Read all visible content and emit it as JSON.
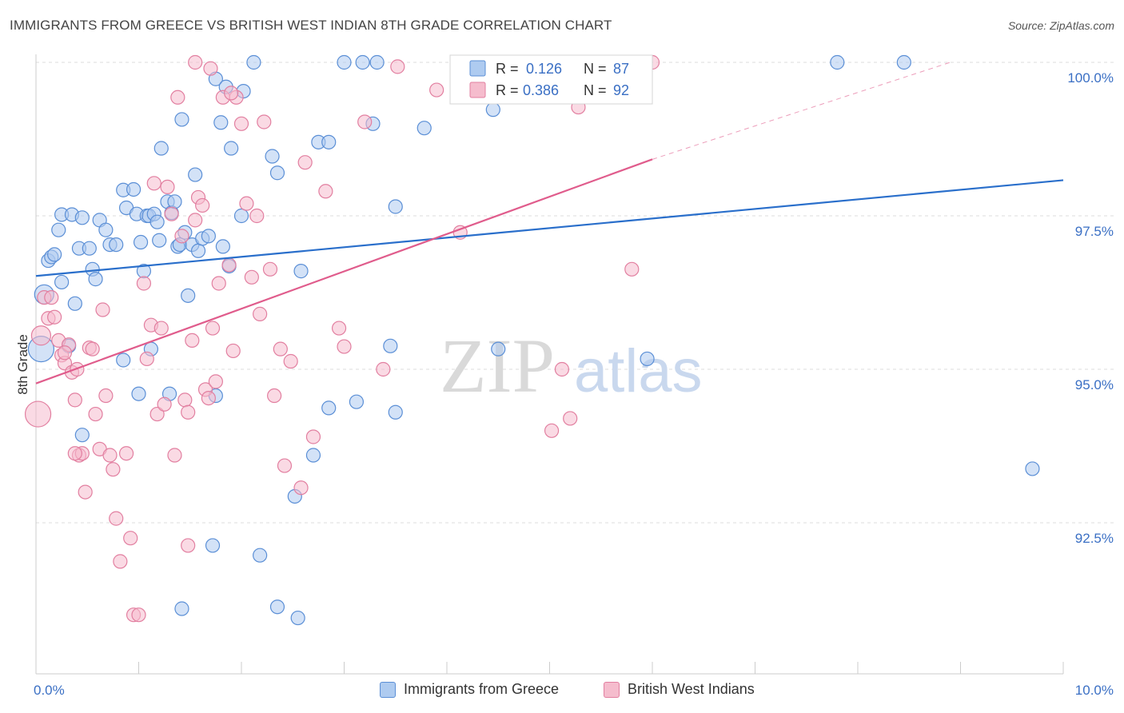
{
  "title": "IMMIGRANTS FROM GREECE VS BRITISH WEST INDIAN 8TH GRADE CORRELATION CHART",
  "source": "Source: ZipAtlas.com",
  "watermark": {
    "zip": "ZIP",
    "atlas": "atlas"
  },
  "legend_top": [
    {
      "r_label": "R =",
      "r_value": "0.126",
      "n_label": "N =",
      "n_value": "87"
    },
    {
      "r_label": "R =",
      "r_value": "0.386",
      "n_label": "N =",
      "n_value": "92"
    }
  ],
  "legend_bottom": [
    "Immigrants from Greece",
    "British West Indians"
  ],
  "colors": {
    "blue_fill": "#aecbf0",
    "blue_stroke": "#5b8fd6",
    "blue_line": "#2a6fcb",
    "pink_fill": "#f5bccd",
    "pink_stroke": "#e27fa0",
    "pink_line": "#e05c8c",
    "axis_text": "#3a6fc4",
    "grid": "#dcdcdc"
  },
  "chart_data": {
    "type": "scatter",
    "title": "IMMIGRANTS FROM GREECE VS BRITISH WEST INDIAN 8TH GRADE CORRELATION CHART",
    "xlabel": "",
    "ylabel": "8th Grade",
    "xlim": [
      0,
      10
    ],
    "ylim": [
      90.0,
      100.2
    ],
    "x_tick_labels": [
      "0.0%",
      "10.0%"
    ],
    "y_tick_labels": [
      "100.0%",
      "97.5%",
      "95.0%",
      "92.5%"
    ],
    "y_ticks": [
      100.0,
      97.5,
      95.0,
      92.5
    ],
    "grid": true,
    "legend_placement": "top-center",
    "series": [
      {
        "name": "Immigrants from Greece",
        "r": 0.126,
        "n": 87,
        "trend": {
          "x": [
            0,
            10
          ],
          "y": [
            96.52,
            98.08
          ]
        },
        "points": [
          [
            0.05,
            95.33,
            "L"
          ],
          [
            0.08,
            96.22,
            "M"
          ],
          [
            0.12,
            96.77
          ],
          [
            0.15,
            96.83
          ],
          [
            0.18,
            96.87
          ],
          [
            0.22,
            97.27
          ],
          [
            0.25,
            96.42
          ],
          [
            0.25,
            97.52
          ],
          [
            0.32,
            95.38
          ],
          [
            0.35,
            97.52
          ],
          [
            0.38,
            96.07
          ],
          [
            0.42,
            96.97
          ],
          [
            0.45,
            97.47
          ],
          [
            0.52,
            96.97
          ],
          [
            0.55,
            96.63
          ],
          [
            0.58,
            96.47
          ],
          [
            0.62,
            97.43
          ],
          [
            0.68,
            97.27
          ],
          [
            0.72,
            97.03
          ],
          [
            0.78,
            97.03
          ],
          [
            0.85,
            97.92
          ],
          [
            0.88,
            97.63
          ],
          [
            0.95,
            97.93
          ],
          [
            0.98,
            97.53
          ],
          [
            1.02,
            97.07
          ],
          [
            1.05,
            96.6
          ],
          [
            1.08,
            97.5
          ],
          [
            1.1,
            97.5
          ],
          [
            1.12,
            95.33
          ],
          [
            1.15,
            97.53
          ],
          [
            1.18,
            97.4
          ],
          [
            1.2,
            97.1
          ],
          [
            1.22,
            98.6
          ],
          [
            1.28,
            97.73
          ],
          [
            1.32,
            97.55
          ],
          [
            1.35,
            97.73
          ],
          [
            1.38,
            97.0
          ],
          [
            1.4,
            97.03
          ],
          [
            1.42,
            99.07
          ],
          [
            1.45,
            97.23
          ],
          [
            1.48,
            96.2
          ],
          [
            1.52,
            97.03
          ],
          [
            1.55,
            98.17
          ],
          [
            1.58,
            96.93
          ],
          [
            1.62,
            97.13
          ],
          [
            1.68,
            97.17
          ],
          [
            1.75,
            99.73
          ],
          [
            1.8,
            99.02
          ],
          [
            1.82,
            97.0
          ],
          [
            1.85,
            99.6
          ],
          [
            1.9,
            98.6
          ],
          [
            2.0,
            97.5
          ],
          [
            2.02,
            99.53
          ],
          [
            2.12,
            100.0
          ],
          [
            2.3,
            98.47
          ],
          [
            2.35,
            98.2
          ],
          [
            2.58,
            96.6
          ],
          [
            2.75,
            98.7
          ],
          [
            2.85,
            98.7
          ],
          [
            3.0,
            100.0
          ],
          [
            3.18,
            100.0
          ],
          [
            3.32,
            100.0
          ],
          [
            3.28,
            99.0
          ],
          [
            3.45,
            95.38
          ],
          [
            3.5,
            97.65
          ],
          [
            3.78,
            98.93
          ],
          [
            4.45,
            99.23
          ],
          [
            4.5,
            95.33
          ],
          [
            5.95,
            95.17
          ],
          [
            7.8,
            100.0
          ],
          [
            8.45,
            100.0
          ],
          [
            9.7,
            93.38
          ],
          [
            2.52,
            92.93
          ],
          [
            2.55,
            90.95
          ],
          [
            2.7,
            93.6
          ],
          [
            2.85,
            94.37
          ],
          [
            3.12,
            94.47
          ],
          [
            3.5,
            94.3
          ],
          [
            1.3,
            94.6
          ],
          [
            1.0,
            94.6
          ],
          [
            0.85,
            95.15
          ],
          [
            1.75,
            94.57
          ],
          [
            1.72,
            92.13
          ],
          [
            2.18,
            91.97
          ],
          [
            2.35,
            91.13
          ],
          [
            1.42,
            91.1
          ],
          [
            0.45,
            93.93
          ],
          [
            1.88,
            96.68
          ]
        ]
      },
      {
        "name": "British West Indians",
        "r": 0.386,
        "n": 92,
        "trend": {
          "x": [
            0,
            6
          ],
          "y": [
            94.77,
            98.42
          ]
        },
        "trend_dashed": {
          "x": [
            6,
            8.9
          ],
          "y": [
            98.42,
            100.0
          ]
        },
        "points": [
          [
            0.02,
            94.27,
            "L"
          ],
          [
            0.05,
            95.55,
            "M"
          ],
          [
            0.08,
            96.17
          ],
          [
            0.12,
            95.83
          ],
          [
            0.18,
            95.85
          ],
          [
            0.22,
            95.47
          ],
          [
            0.25,
            95.23
          ],
          [
            0.28,
            95.1
          ],
          [
            0.32,
            95.4
          ],
          [
            0.35,
            94.95
          ],
          [
            0.38,
            94.5
          ],
          [
            0.42,
            93.6
          ],
          [
            0.45,
            93.63
          ],
          [
            0.48,
            93.0
          ],
          [
            0.52,
            95.35
          ],
          [
            0.55,
            95.33
          ],
          [
            0.58,
            94.27
          ],
          [
            0.62,
            93.7
          ],
          [
            0.65,
            95.97
          ],
          [
            0.68,
            94.57
          ],
          [
            0.72,
            93.6
          ],
          [
            0.75,
            93.37
          ],
          [
            0.78,
            92.57
          ],
          [
            0.82,
            91.87
          ],
          [
            0.88,
            93.63
          ],
          [
            0.92,
            92.25
          ],
          [
            0.95,
            91.0
          ],
          [
            1.0,
            91.0
          ],
          [
            1.05,
            96.4
          ],
          [
            1.08,
            95.17
          ],
          [
            1.12,
            95.72
          ],
          [
            1.15,
            98.03
          ],
          [
            1.18,
            94.27
          ],
          [
            1.22,
            95.67
          ],
          [
            1.25,
            94.43
          ],
          [
            1.28,
            97.97
          ],
          [
            1.32,
            97.53
          ],
          [
            1.35,
            93.6
          ],
          [
            1.38,
            99.43
          ],
          [
            1.42,
            97.17
          ],
          [
            1.45,
            94.5
          ],
          [
            1.48,
            94.3
          ],
          [
            1.52,
            95.47
          ],
          [
            1.55,
            97.43
          ],
          [
            1.58,
            97.8
          ],
          [
            1.62,
            97.67
          ],
          [
            1.65,
            94.67
          ],
          [
            1.68,
            94.53
          ],
          [
            1.72,
            95.67
          ],
          [
            1.75,
            94.8
          ],
          [
            1.78,
            96.4
          ],
          [
            1.82,
            99.43
          ],
          [
            1.88,
            96.7
          ],
          [
            1.92,
            95.3
          ],
          [
            1.95,
            99.43
          ],
          [
            2.0,
            99.0
          ],
          [
            2.05,
            97.7
          ],
          [
            2.1,
            96.5
          ],
          [
            2.15,
            97.5
          ],
          [
            2.18,
            95.9
          ],
          [
            2.22,
            99.03
          ],
          [
            2.28,
            96.63
          ],
          [
            2.32,
            94.57
          ],
          [
            2.38,
            95.33
          ],
          [
            2.42,
            93.43
          ],
          [
            2.48,
            95.13
          ],
          [
            2.58,
            93.07
          ],
          [
            2.7,
            93.9
          ],
          [
            2.82,
            97.9
          ],
          [
            2.95,
            95.67
          ],
          [
            3.0,
            95.37
          ],
          [
            3.2,
            99.03
          ],
          [
            3.38,
            95.0
          ],
          [
            3.52,
            99.93
          ],
          [
            3.9,
            99.55
          ],
          [
            4.2,
            100.0
          ],
          [
            5.02,
            94.0
          ],
          [
            5.12,
            95.0
          ],
          [
            5.2,
            94.2
          ],
          [
            5.28,
            99.27
          ],
          [
            5.8,
            96.63
          ],
          [
            6.0,
            100.0
          ],
          [
            4.13,
            97.23
          ],
          [
            0.28,
            95.27
          ],
          [
            1.7,
            99.9
          ],
          [
            1.9,
            99.5
          ],
          [
            2.62,
            98.37
          ],
          [
            1.55,
            100.0
          ],
          [
            0.38,
            93.63
          ],
          [
            1.48,
            92.13
          ],
          [
            0.15,
            96.17
          ],
          [
            0.4,
            95.0
          ]
        ]
      }
    ]
  }
}
